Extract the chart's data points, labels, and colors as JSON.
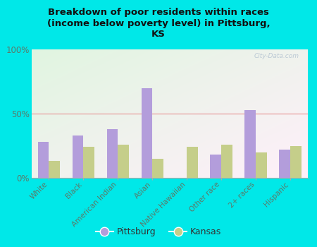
{
  "title": "Breakdown of poor residents within races\n(income below poverty level) in Pittsburg,\nKS",
  "categories": [
    "White",
    "Black",
    "American Indian",
    "Asian",
    "Native Hawaiian",
    "Other race",
    "2+ races",
    "Hispanic"
  ],
  "pittsburg": [
    28,
    33,
    38,
    70,
    0,
    18,
    53,
    22
  ],
  "kansas": [
    13,
    24,
    26,
    15,
    24,
    26,
    20,
    25
  ],
  "pittsburg_color": "#b39ddb",
  "kansas_color": "#c5ce8a",
  "background_outer": "#00e8e8",
  "ylabel_ticks": [
    "0%",
    "50%",
    "100%"
  ],
  "yticks": [
    0,
    50,
    100
  ],
  "bar_width": 0.32,
  "watermark": "City-Data.com",
  "legend_pittsburg": "Pittsburg",
  "legend_kansas": "Kansas",
  "tick_label_color": "#5a7a6a",
  "title_color": "#111111",
  "gridline_color": "#e8a0a0",
  "plot_bg": "#e8f5e0"
}
